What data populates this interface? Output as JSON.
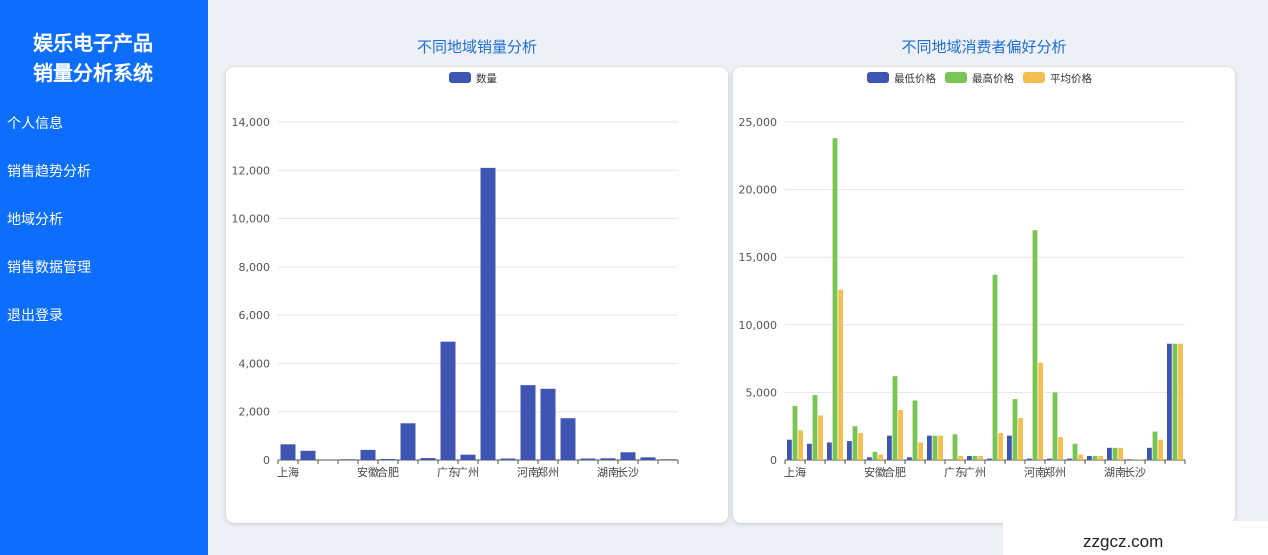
{
  "app": {
    "title_line1": "娱乐电子产品",
    "title_line2": "销量分析系统"
  },
  "sidebar": {
    "items": [
      {
        "label": "个人信息"
      },
      {
        "label": "销售趋势分析"
      },
      {
        "label": "地域分析"
      },
      {
        "label": "销售数据管理"
      },
      {
        "label": "退出登录"
      }
    ]
  },
  "panels": {
    "left_title": "不同地域销量分析",
    "right_title": "不同地域消费者偏好分析"
  },
  "colors": {
    "blue": "#3f55b3",
    "green": "#78c552",
    "yellow": "#f3bf50",
    "sidebar": "#0d6efd"
  },
  "watermark": "zzgcz.com",
  "chart_data": [
    {
      "type": "bar",
      "title": "",
      "xlabel": "",
      "ylabel": "",
      "ylim": [
        0,
        14000
      ],
      "yticks": [
        "0",
        "2,000",
        "4,000",
        "6,000",
        "8,000",
        "10,000",
        "12,000",
        "14,000"
      ],
      "categories": [
        "上海",
        "",
        "",
        "",
        "安徽",
        "合肥",
        "",
        "",
        "广东",
        "广州",
        "",
        "",
        "河南",
        "郑州",
        "",
        "",
        "湖南",
        "长沙",
        "",
        ""
      ],
      "series": [
        {
          "name": "数量",
          "values": [
            650,
            380,
            0,
            30,
            420,
            40,
            1520,
            80,
            4900,
            220,
            12100,
            60,
            3100,
            2950,
            1730,
            60,
            70,
            320,
            110,
            30
          ]
        }
      ],
      "legend": "top-center"
    },
    {
      "type": "bar",
      "title": "",
      "xlabel": "",
      "ylabel": "",
      "ylim": [
        0,
        25000
      ],
      "yticks": [
        "0",
        "5,000",
        "10,000",
        "15,000",
        "20,000",
        "25,000"
      ],
      "categories": [
        "上海",
        "",
        "",
        "",
        "安徽",
        "合肥",
        "",
        "",
        "广东",
        "广州",
        "",
        "",
        "河南",
        "郑州",
        "",
        "",
        "湖南",
        "长沙",
        "",
        ""
      ],
      "series": [
        {
          "name": "最低价格",
          "values": [
            1500,
            1200,
            1300,
            1400,
            200,
            1800,
            200,
            1800,
            0,
            300,
            100,
            1800,
            100,
            100,
            100,
            300,
            900,
            50,
            900,
            8600
          ]
        },
        {
          "name": "最高价格",
          "values": [
            4000,
            4800,
            23800,
            2500,
            600,
            6200,
            4400,
            1800,
            1900,
            300,
            13700,
            4500,
            17000,
            5000,
            1200,
            300,
            900,
            50,
            2100,
            8600
          ]
        },
        {
          "name": "平均价格",
          "values": [
            2200,
            3300,
            12600,
            2000,
            400,
            3700,
            1300,
            1800,
            300,
            300,
            2000,
            3100,
            7200,
            1700,
            400,
            300,
            900,
            50,
            1500,
            8600
          ]
        }
      ],
      "legend": "top-center"
    }
  ]
}
